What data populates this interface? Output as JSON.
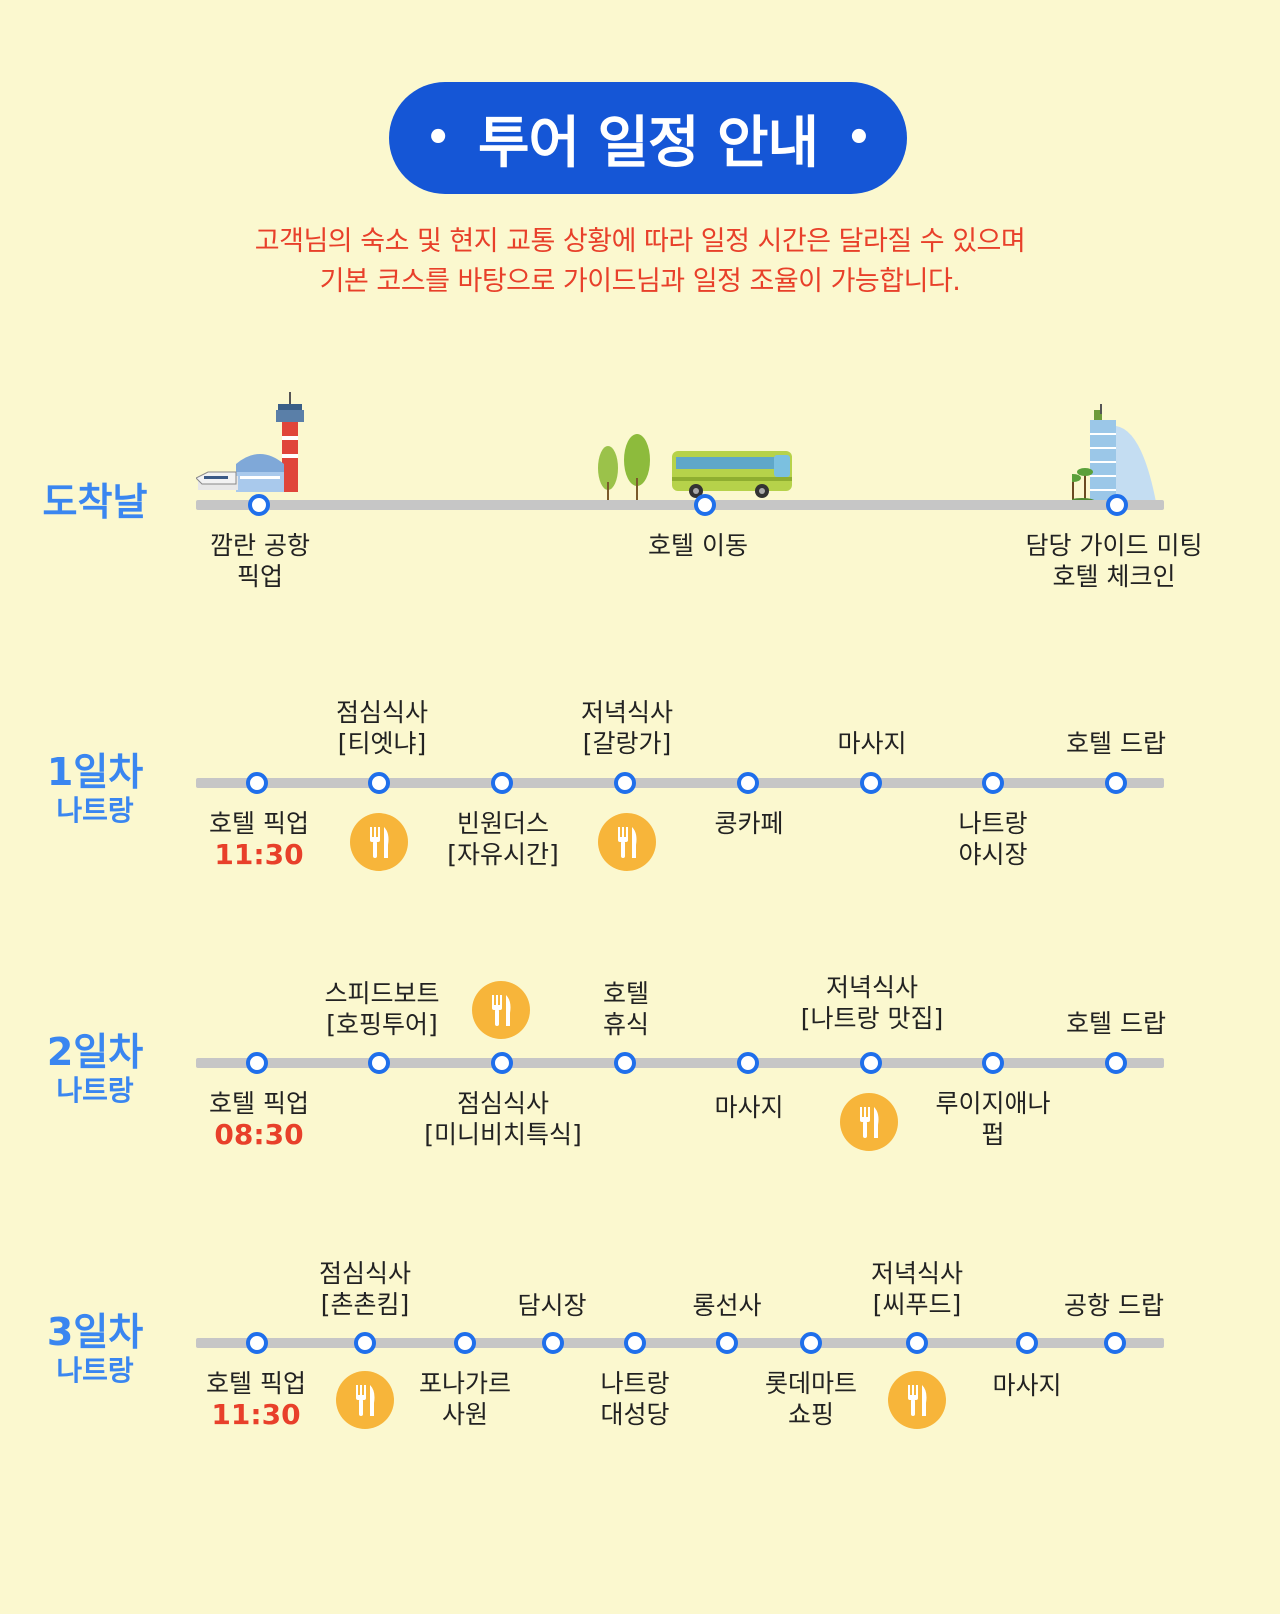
{
  "header": {
    "title": "투어 일정 안내",
    "notice_line1": "고객님의 숙소 및 현지 교통 상황에 따라 일정 시간은 달라질 수 있으며",
    "notice_line2": "기본 코스를 바탕으로 가이드님과 일정 조율이 가능합니다."
  },
  "arrival": {
    "day": "도착날",
    "stops": [
      {
        "line1": "깜란 공항",
        "line2": "픽업"
      },
      {
        "line1": "호텔 이동"
      },
      {
        "line1": "담당 가이드 미팅",
        "line2": "호텔 체크인"
      }
    ]
  },
  "day1": {
    "day": "1일차",
    "city": "나트랑",
    "top": [
      {
        "line1": "점심식사",
        "line2": "[티엣냐]"
      },
      {
        "line1": "저녁식사",
        "line2": "[갈랑가]"
      },
      {
        "line1": "마사지"
      },
      {
        "line1": "호텔 드랍"
      }
    ],
    "bottom": [
      {
        "line1": "호텔 픽업",
        "time": "11:30"
      },
      {
        "line1": "빈원더스",
        "line2": "[자유시간]"
      },
      {
        "line1": "콩카페"
      },
      {
        "line1": "나트랑",
        "line2": "야시장"
      }
    ]
  },
  "day2": {
    "day": "2일차",
    "city": "나트랑",
    "top": [
      {
        "line1": "스피드보트",
        "line2": "[호핑투어]"
      },
      {
        "line1": "호텔",
        "line2": "휴식"
      },
      {
        "line1": "저녁식사",
        "line2": "[나트랑 맛집]"
      },
      {
        "line1": "호텔 드랍"
      }
    ],
    "bottom": [
      {
        "line1": "호텔 픽업",
        "time": "08:30"
      },
      {
        "line1": "점심식사",
        "line2": "[미니비치특식]"
      },
      {
        "line1": "마사지"
      },
      {
        "line1": "루이지애나",
        "line2": "펍"
      }
    ]
  },
  "day3": {
    "day": "3일차",
    "city": "나트랑",
    "top": [
      {
        "line1": "점심식사",
        "line2": "[촌촌킴]"
      },
      {
        "line1": "담시장"
      },
      {
        "line1": "롱선사"
      },
      {
        "line1": "저녁식사",
        "line2": "[씨푸드]"
      },
      {
        "line1": "공항 드랍"
      }
    ],
    "bottom": [
      {
        "line1": "호텔 픽업",
        "time": "11:30"
      },
      {
        "line1": "포나가르",
        "line2": "사원"
      },
      {
        "line1": "나트랑",
        "line2": "대성당"
      },
      {
        "line1": "롯데마트",
        "line2": "쇼핑"
      },
      {
        "line1": "마사지"
      }
    ]
  },
  "icons": {
    "meal": "fork-knife-icon",
    "airport": "airport-icon",
    "bus": "bus-icon",
    "trees": "tree-icon",
    "hotel": "hotel-icon"
  },
  "colors": {
    "background": "#FBF8CF",
    "title_pill": "#1556D6",
    "notice": "#E8402A",
    "day_label": "#3A86F0",
    "stop_ring": "#1F6FEB",
    "meal_badge": "#F7B53A"
  }
}
